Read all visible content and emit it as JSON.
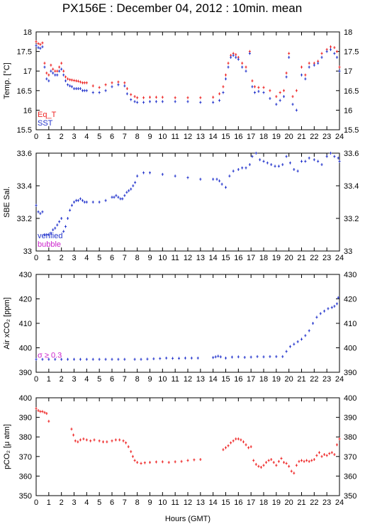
{
  "title": "PX156E : December 04, 2012 : 10min. mean",
  "xlabel": "Hours (GMT)",
  "colors": {
    "red": "#ee2222",
    "blue": "#2233cc",
    "magenta": "#cc22cc",
    "frame": "#000000"
  },
  "chart_data": [
    {
      "type": "scatter",
      "ylabel": "Temp. [°C]",
      "xlim": [
        0,
        24
      ],
      "ylim": [
        15.5,
        18
      ],
      "yticks": [
        15.5,
        16,
        16.5,
        17,
        17.5,
        18
      ],
      "xticks": [
        0,
        1,
        2,
        3,
        4,
        5,
        6,
        7,
        8,
        9,
        10,
        11,
        12,
        13,
        14,
        15,
        16,
        17,
        18,
        19,
        20,
        21,
        22,
        23,
        24
      ],
      "legend": [
        "Eq_T",
        "SST"
      ],
      "series": [
        {
          "name": "Eq_T",
          "color": "#ee2222",
          "x": [
            0,
            0.17,
            0.33,
            0.5,
            0.67,
            0.83,
            1,
            1.17,
            1.33,
            1.5,
            1.67,
            1.83,
            2,
            2.17,
            2.33,
            2.5,
            2.67,
            2.83,
            3,
            3.17,
            3.33,
            3.5,
            3.67,
            3.83,
            4,
            4.5,
            5,
            5.5,
            6,
            6.5,
            7,
            7.2,
            7.5,
            7.8,
            8,
            8.5,
            9,
            9.5,
            10,
            11,
            12,
            13,
            14,
            14.5,
            14.8,
            15,
            15.2,
            15.4,
            15.6,
            15.8,
            16,
            16.3,
            16.6,
            16.9,
            17.1,
            17.3,
            17.6,
            18,
            18.5,
            19,
            19.3,
            19.6,
            19.8,
            20,
            20.3,
            20.6,
            21,
            21.3,
            21.6,
            22,
            22.3,
            22.6,
            23,
            23.3,
            23.6,
            23.8,
            24
          ],
          "y": [
            17.75,
            17.7,
            17.68,
            17.72,
            17.2,
            16.95,
            16.9,
            17.15,
            17.05,
            17.0,
            17.0,
            17.1,
            17.2,
            17.0,
            16.85,
            16.8,
            16.78,
            16.77,
            16.76,
            16.75,
            16.74,
            16.72,
            16.7,
            16.7,
            16.7,
            16.62,
            16.58,
            16.65,
            16.7,
            16.72,
            16.7,
            16.55,
            16.4,
            16.35,
            16.32,
            16.32,
            16.33,
            16.33,
            16.33,
            16.32,
            16.32,
            16.32,
            16.33,
            16.42,
            16.6,
            16.9,
            17.2,
            17.4,
            17.45,
            17.42,
            17.35,
            17.2,
            17.1,
            17.5,
            16.75,
            16.6,
            16.58,
            16.58,
            16.5,
            16.35,
            16.45,
            16.5,
            16.95,
            17.45,
            16.35,
            16.5,
            17.1,
            16.9,
            17.2,
            17.2,
            17.25,
            17.45,
            17.55,
            17.62,
            17.6,
            17.5,
            17.1
          ]
        },
        {
          "name": "SST",
          "color": "#2233cc",
          "x": [
            0,
            0.17,
            0.33,
            0.5,
            0.67,
            0.83,
            1,
            1.17,
            1.33,
            1.5,
            1.67,
            1.83,
            2,
            2.17,
            2.33,
            2.5,
            2.67,
            2.83,
            3,
            3.17,
            3.33,
            3.5,
            3.67,
            3.83,
            4,
            4.5,
            5,
            5.5,
            6,
            6.5,
            7,
            7.2,
            7.5,
            7.8,
            8,
            8.5,
            9,
            9.5,
            10,
            11,
            12,
            13,
            14,
            14.5,
            14.8,
            15,
            15.2,
            15.4,
            15.6,
            15.8,
            16,
            16.3,
            16.6,
            16.9,
            17.1,
            17.3,
            17.6,
            18,
            18.5,
            19,
            19.3,
            19.6,
            19.8,
            20,
            20.3,
            20.6,
            21,
            21.3,
            21.6,
            22,
            22.3,
            22.6,
            23,
            23.3,
            23.6,
            23.8,
            24
          ],
          "y": [
            17.65,
            17.6,
            17.58,
            17.62,
            17.1,
            16.8,
            16.75,
            17.0,
            16.95,
            16.9,
            16.9,
            17.0,
            17.05,
            16.9,
            16.75,
            16.65,
            16.62,
            16.6,
            16.55,
            16.55,
            16.55,
            16.55,
            16.5,
            16.5,
            16.5,
            16.45,
            16.45,
            16.5,
            16.6,
            16.65,
            16.62,
            16.42,
            16.27,
            16.22,
            16.2,
            16.2,
            16.22,
            16.22,
            16.22,
            16.22,
            16.22,
            16.2,
            16.2,
            16.25,
            16.45,
            16.8,
            17.1,
            17.35,
            17.4,
            17.35,
            17.3,
            17.1,
            17.0,
            17.45,
            16.6,
            16.45,
            16.48,
            16.45,
            16.3,
            16.15,
            16.25,
            16.35,
            16.85,
            17.35,
            16.15,
            16.0,
            16.9,
            16.8,
            17.1,
            17.15,
            17.2,
            17.35,
            17.5,
            17.55,
            17.45,
            17.35,
            17.0
          ]
        }
      ]
    },
    {
      "type": "scatter",
      "ylabel": "SBE Sal.",
      "xlim": [
        0,
        24
      ],
      "ylim": [
        33,
        33.6
      ],
      "yticks": [
        33,
        33.2,
        33.4,
        33.6
      ],
      "xticks": [
        0,
        1,
        2,
        3,
        4,
        5,
        6,
        7,
        8,
        9,
        10,
        11,
        12,
        13,
        14,
        15,
        16,
        17,
        18,
        19,
        20,
        21,
        22,
        23,
        24
      ],
      "legend": [
        "verified",
        "bubble"
      ],
      "series": [
        {
          "name": "verified",
          "color": "#2233cc",
          "x": [
            0,
            0.17,
            0.33,
            0.5,
            0.67,
            0.83,
            1,
            1.17,
            1.33,
            1.5,
            1.67,
            1.83,
            2,
            2.17,
            2.33,
            2.5,
            2.67,
            2.83,
            3,
            3.17,
            3.33,
            3.5,
            3.67,
            3.83,
            4,
            4.5,
            5,
            5.5,
            6,
            6.17,
            6.33,
            6.5,
            6.67,
            6.83,
            7,
            7.17,
            7.33,
            7.5,
            7.67,
            7.83,
            8,
            8.5,
            9,
            10,
            11,
            12,
            13,
            14,
            14.3,
            14.5,
            14.7,
            15,
            15.3,
            15.6,
            16,
            16.3,
            16.6,
            16.9,
            17.1,
            17.4,
            17.7,
            18,
            18.3,
            18.6,
            18.9,
            19.2,
            19.5,
            19.8,
            20.1,
            20.4,
            20.7,
            21,
            21.3,
            21.6,
            22,
            22.3,
            22.6,
            23,
            23.3,
            23.6,
            23.9,
            24
          ],
          "y": [
            33.28,
            33.24,
            33.23,
            33.24,
            33.1,
            33.1,
            33.1,
            33.11,
            33.13,
            33.14,
            33.16,
            33.18,
            33.2,
            33.12,
            33.15,
            33.2,
            33.25,
            33.28,
            33.3,
            33.31,
            33.31,
            33.32,
            33.31,
            33.3,
            33.3,
            33.3,
            33.3,
            33.31,
            33.33,
            33.33,
            33.34,
            33.33,
            33.32,
            33.32,
            33.34,
            33.36,
            33.37,
            33.38,
            33.4,
            33.42,
            33.46,
            33.48,
            33.48,
            33.47,
            33.46,
            33.45,
            33.44,
            33.44,
            33.44,
            33.43,
            33.41,
            33.39,
            33.46,
            33.49,
            33.5,
            33.51,
            33.51,
            33.53,
            33.58,
            33.6,
            33.56,
            33.55,
            33.54,
            33.53,
            33.52,
            33.52,
            33.53,
            33.58,
            33.54,
            33.5,
            33.49,
            33.55,
            33.55,
            33.57,
            33.56,
            33.55,
            33.53,
            33.58,
            33.6,
            33.58,
            33.57,
            33.55
          ]
        },
        {
          "name": "bubble",
          "color": "#cc22cc",
          "x": [],
          "y": []
        }
      ]
    },
    {
      "type": "scatter",
      "ylabel": "Air xCO₂ [ppm]",
      "xlim": [
        0,
        24
      ],
      "ylim": [
        390,
        430
      ],
      "yticks": [
        390,
        400,
        410,
        420,
        430
      ],
      "xticks": [
        0,
        1,
        2,
        3,
        4,
        5,
        6,
        7,
        8,
        9,
        10,
        11,
        12,
        13,
        14,
        15,
        16,
        17,
        18,
        19,
        20,
        21,
        22,
        23,
        24
      ],
      "annotation": "σ ≥ 0.3",
      "series": [
        {
          "name": "xCO2",
          "color": "#2233cc",
          "x": [
            0,
            0.5,
            1,
            1.5,
            2,
            2.5,
            3,
            3.5,
            4,
            4.5,
            5,
            5.5,
            6,
            6.5,
            7,
            7.8,
            8.3,
            8.8,
            9.3,
            9.8,
            10.3,
            10.8,
            11.3,
            11.8,
            12.3,
            12.8,
            14,
            14.2,
            14.4,
            14.6,
            15,
            15.5,
            16,
            16.5,
            17,
            17.5,
            18,
            18.5,
            19,
            19.5,
            19.8,
            20.1,
            20.4,
            20.7,
            21,
            21.3,
            21.6,
            21.9,
            22.2,
            22.5,
            22.8,
            23.1,
            23.4,
            23.6,
            23.8,
            23.9
          ],
          "y": [
            395.3,
            395.3,
            395.3,
            395.3,
            395.3,
            395.3,
            395.3,
            395.3,
            395.3,
            395.3,
            395.3,
            395.3,
            395.3,
            395.3,
            395.3,
            395.3,
            395.3,
            395.4,
            395.5,
            395.6,
            395.8,
            395.7,
            395.7,
            395.8,
            395.8,
            395.8,
            396.0,
            396.3,
            396.6,
            396.3,
            395.8,
            396.2,
            396.3,
            396.1,
            396.2,
            396.4,
            396.3,
            396.4,
            396.4,
            396.4,
            398.5,
            400.5,
            401.5,
            402.5,
            403.5,
            405,
            407,
            410,
            412.5,
            414,
            415,
            416,
            416.5,
            417,
            418,
            420.5
          ]
        }
      ]
    },
    {
      "type": "scatter",
      "ylabel": "pCO₂ [μ atm]",
      "xlim": [
        0,
        24
      ],
      "ylim": [
        350,
        400
      ],
      "yticks": [
        350,
        360,
        370,
        380,
        390,
        400
      ],
      "xticks": [
        0,
        1,
        2,
        3,
        4,
        5,
        6,
        7,
        8,
        9,
        10,
        11,
        12,
        13,
        14,
        15,
        16,
        17,
        18,
        19,
        20,
        21,
        22,
        23,
        24
      ],
      "series": [
        {
          "name": "pCO2",
          "color": "#ee2222",
          "x": [
            0,
            0.17,
            0.33,
            0.5,
            0.67,
            0.83,
            1,
            2.8,
            2.95,
            3.1,
            3.3,
            3.5,
            3.75,
            4,
            4.3,
            4.6,
            5,
            5.3,
            5.6,
            6,
            6.3,
            6.6,
            6.9,
            7.1,
            7.3,
            7.5,
            7.65,
            7.8,
            8,
            8.3,
            8.6,
            9,
            9.5,
            10,
            10.5,
            11,
            11.5,
            12,
            12.5,
            13,
            14.8,
            15,
            15.2,
            15.4,
            15.6,
            15.8,
            16,
            16.2,
            16.4,
            16.6,
            16.8,
            17,
            17.2,
            17.4,
            17.6,
            17.8,
            18,
            18.2,
            18.4,
            18.6,
            18.8,
            19,
            19.2,
            19.4,
            19.6,
            19.8,
            20,
            20.2,
            20.4,
            20.6,
            20.8,
            21,
            21.2,
            21.4,
            21.6,
            21.8,
            22,
            22.2,
            22.4,
            22.6,
            22.8,
            23,
            23.2,
            23.4,
            23.6,
            23.8,
            24
          ],
          "y": [
            394.5,
            393.5,
            393,
            393,
            392.5,
            392,
            388,
            384,
            381,
            378,
            377.5,
            378.5,
            379,
            378.5,
            378,
            378.5,
            378,
            377.5,
            377.5,
            378,
            378.5,
            378.5,
            378,
            377,
            375,
            372.5,
            370,
            368,
            367,
            366.5,
            366.8,
            367,
            367.2,
            367.3,
            367,
            367.3,
            367.5,
            368,
            368.3,
            368.5,
            373.5,
            374.5,
            375.5,
            377,
            378,
            379,
            379,
            378.5,
            377.5,
            376,
            374.5,
            375,
            368,
            366,
            365,
            364.5,
            365.5,
            367,
            368,
            368.5,
            367,
            365.5,
            367.5,
            369,
            367,
            366.5,
            365,
            362.5,
            361.5,
            365.5,
            367.5,
            368,
            367.5,
            368,
            367.5,
            368,
            368.5,
            370.5,
            372,
            370,
            371,
            370.5,
            371.5,
            372,
            371,
            376,
            379
          ]
        }
      ]
    }
  ]
}
